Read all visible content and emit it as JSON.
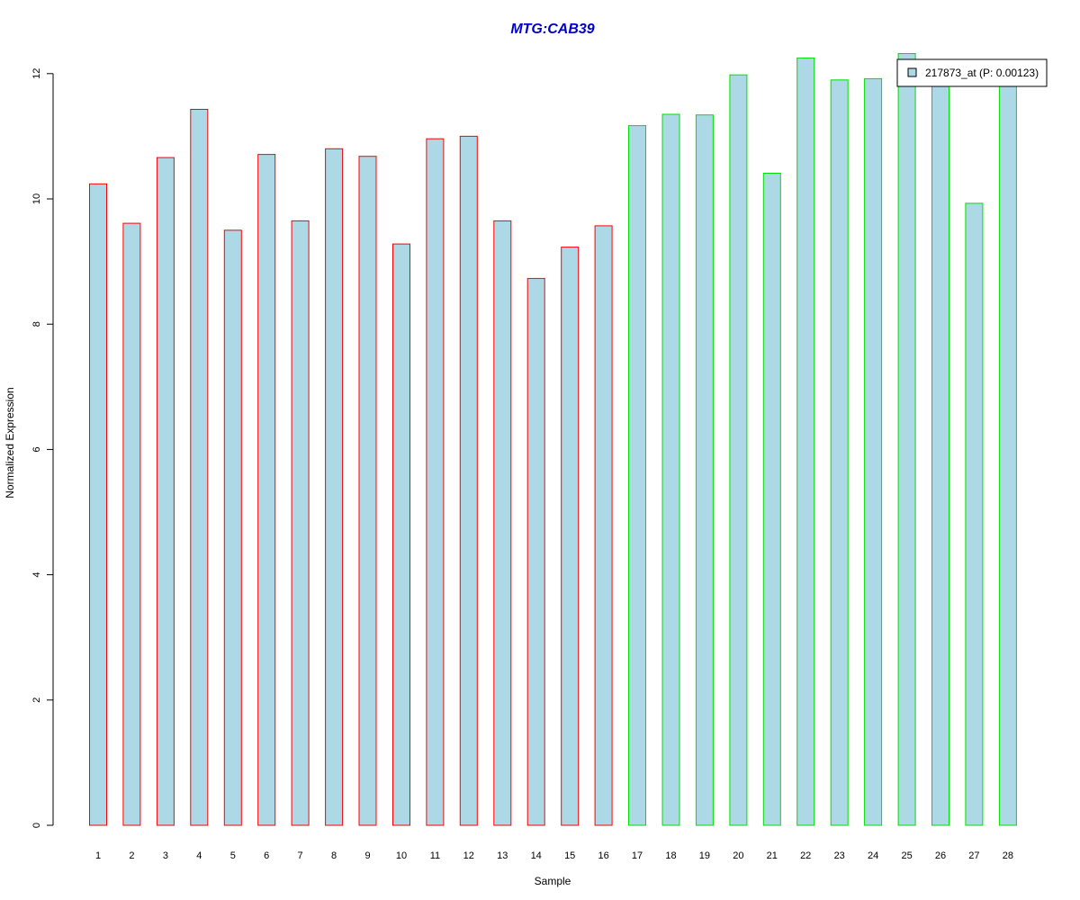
{
  "chart_data": {
    "type": "bar",
    "title": "MTG:CAB39",
    "xlabel": "Sample",
    "ylabel": "Normalized Expression",
    "ylim": [
      0,
      12.5
    ],
    "yticks": [
      0,
      2,
      4,
      6,
      8,
      10,
      12
    ],
    "categories": [
      "1",
      "2",
      "3",
      "4",
      "5",
      "6",
      "7",
      "8",
      "9",
      "10",
      "11",
      "12",
      "13",
      "14",
      "15",
      "16",
      "17",
      "18",
      "19",
      "20",
      "21",
      "22",
      "23",
      "24",
      "25",
      "26",
      "27",
      "28"
    ],
    "values": [
      10.24,
      9.61,
      10.66,
      11.43,
      9.5,
      10.71,
      9.65,
      10.8,
      10.68,
      9.28,
      10.96,
      11.0,
      9.65,
      8.73,
      9.23,
      9.57,
      11.17,
      11.35,
      11.34,
      11.98,
      10.41,
      12.25,
      11.9,
      11.92,
      12.32,
      11.9,
      9.93,
      11.9
    ],
    "groups": [
      "red",
      "red",
      "red",
      "red",
      "red",
      "red",
      "red",
      "red",
      "red",
      "red",
      "red",
      "red",
      "red",
      "red",
      "red",
      "red",
      "green",
      "green",
      "green",
      "green",
      "green",
      "green",
      "green",
      "green",
      "green",
      "green",
      "green",
      "green"
    ],
    "grid": false,
    "legend": {
      "position": "top-right",
      "entries": [
        "217873_at (P: 0.00123)"
      ]
    },
    "colors": {
      "fill": "#add8e6",
      "red": "#ff0000",
      "green": "#00e000",
      "title": "#0000cc"
    }
  }
}
